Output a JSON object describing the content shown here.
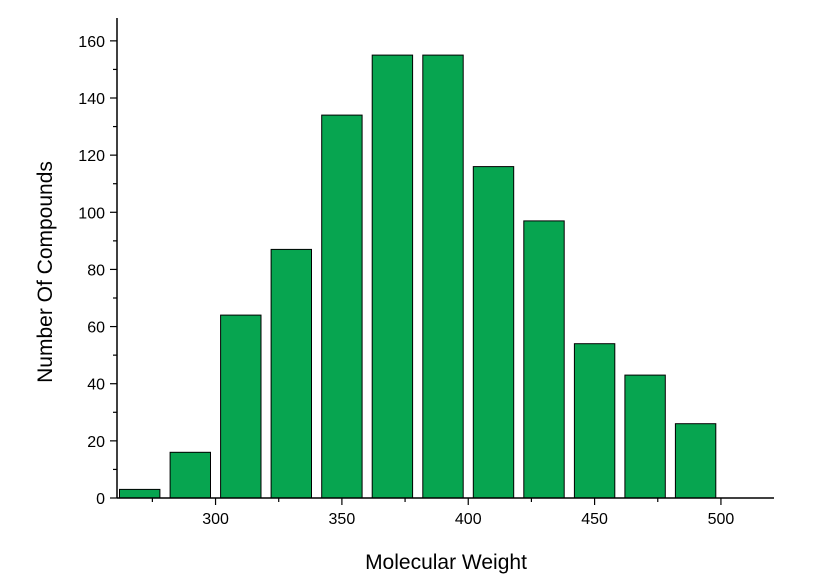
{
  "chart_data": {
    "type": "bar",
    "x": [
      270,
      290,
      310,
      330,
      350,
      370,
      390,
      410,
      430,
      450,
      470,
      490
    ],
    "values": [
      3,
      16,
      64,
      87,
      134,
      155,
      155,
      116,
      97,
      54,
      43,
      26
    ],
    "bin_width": 16,
    "xlabel": "Molecular Weight",
    "ylabel": "Number Of Compounds",
    "xlim": [
      261,
      521
    ],
    "ylim": [
      0,
      168
    ],
    "x_ticks": [
      300,
      350,
      400,
      450,
      500
    ],
    "y_ticks": [
      0,
      20,
      40,
      60,
      80,
      100,
      120,
      140,
      160
    ],
    "grid": false,
    "colors": {
      "bar_fill": "#07A550",
      "bar_edge": "#000000",
      "axis": "#000000"
    }
  }
}
